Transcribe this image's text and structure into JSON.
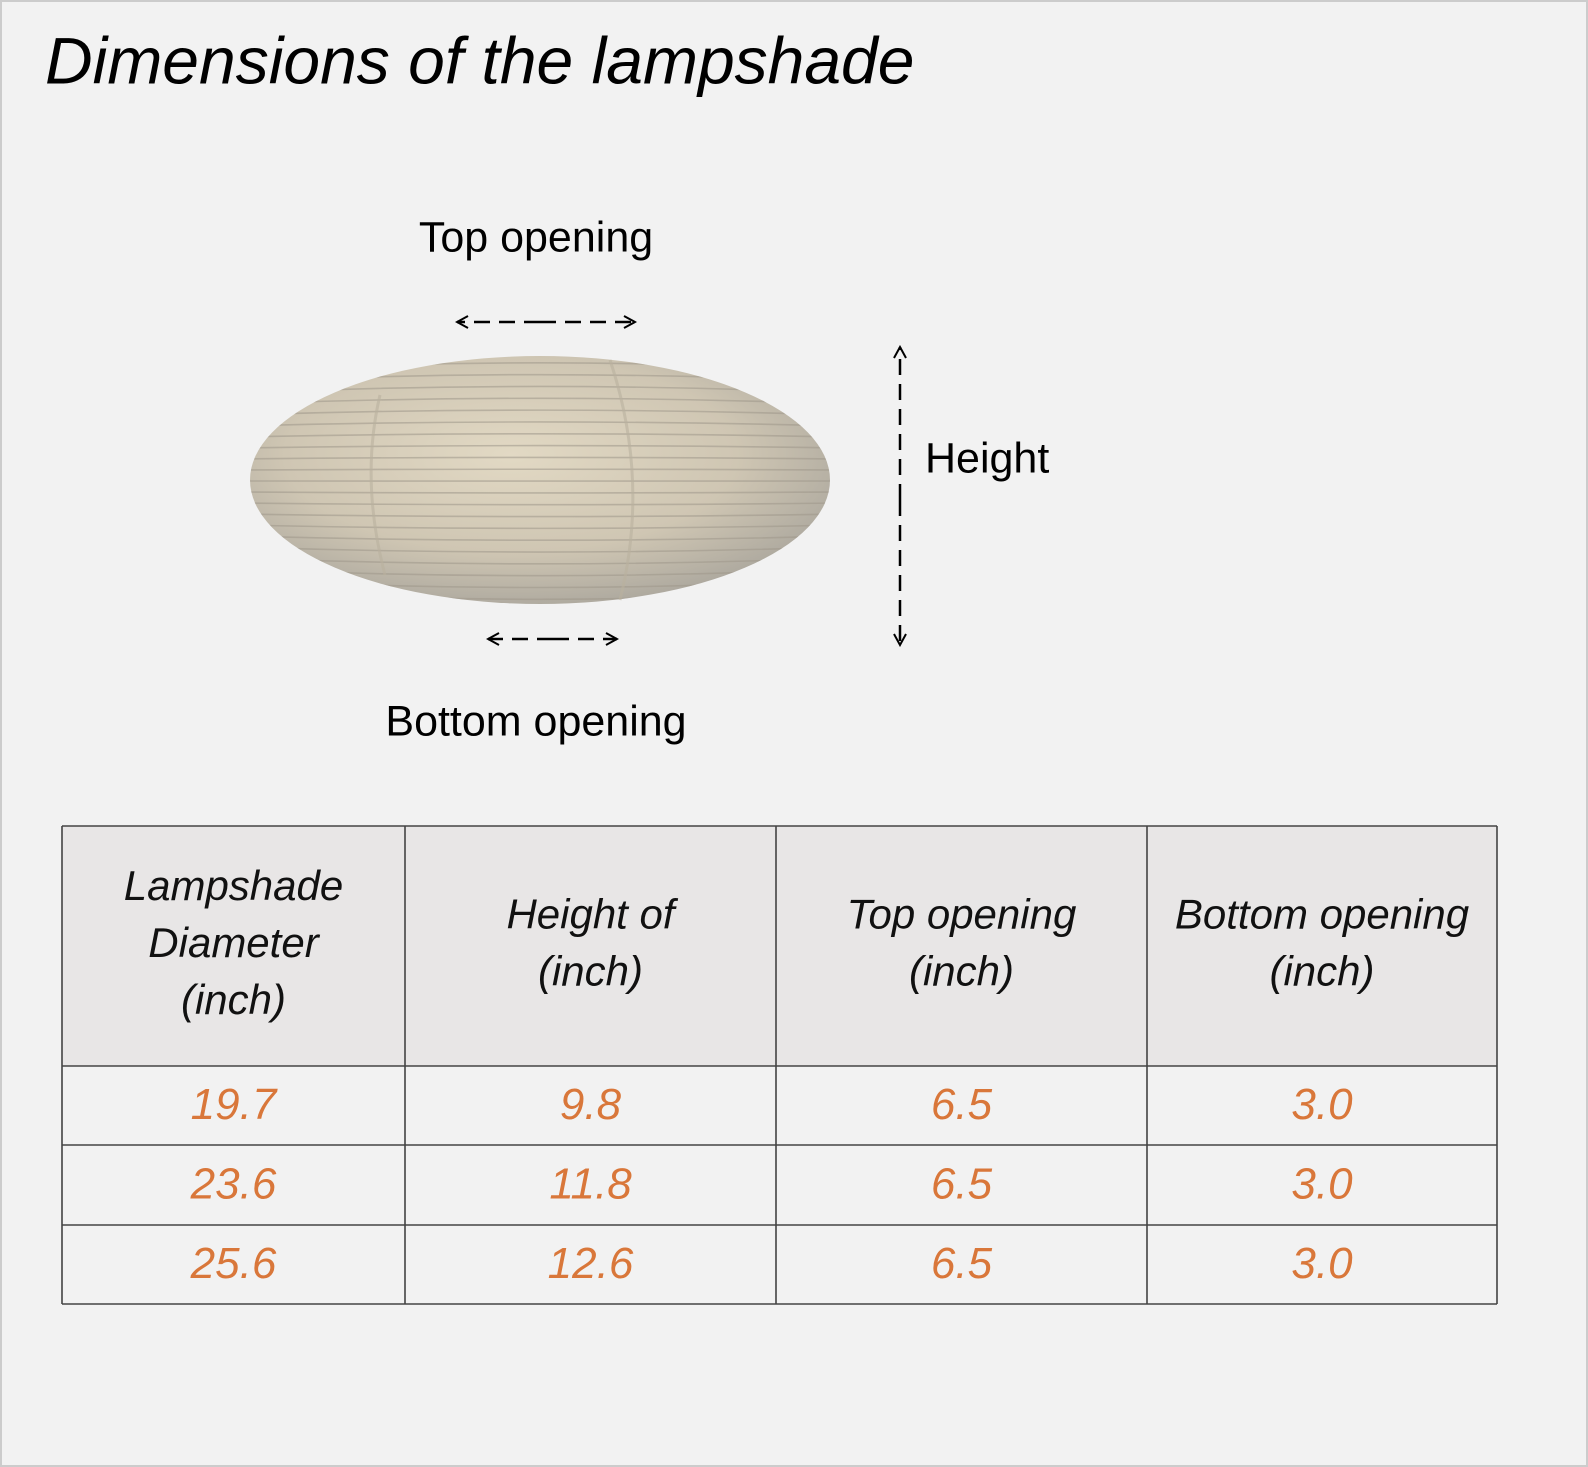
{
  "header": {
    "title": "Dimensions of the lampshade"
  },
  "diagram": {
    "top_opening": "Top opening",
    "height": "Height",
    "bottom_opening": "Bottom opening"
  },
  "table": {
    "headers": [
      [
        "Lampshade",
        "Diameter",
        "(inch)"
      ],
      [
        "Height of",
        "(inch)"
      ],
      [
        "Top opening",
        "(inch)"
      ],
      [
        "Bottom opening",
        "(inch)"
      ]
    ],
    "rows": [
      [
        "19.7",
        "9.8",
        "6.5",
        "3.0"
      ],
      [
        "23.6",
        "11.8",
        "6.5",
        "3.0"
      ],
      [
        "25.6",
        "12.6",
        "6.5",
        "3.0"
      ]
    ]
  }
}
